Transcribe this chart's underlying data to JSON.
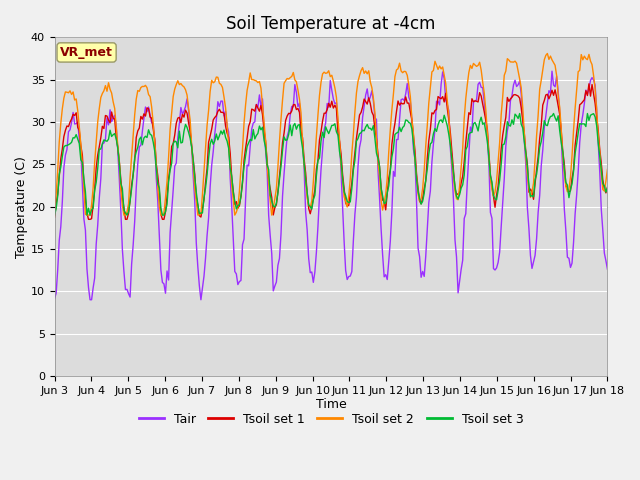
{
  "title": "Soil Temperature at -4cm",
  "xlabel": "Time",
  "ylabel": "Temperature (C)",
  "ylim": [
    0,
    40
  ],
  "yticks": [
    0,
    5,
    10,
    15,
    20,
    25,
    30,
    35,
    40
  ],
  "x_labels": [
    "Jun 3",
    "Jun 4",
    "Jun 5",
    "Jun 6",
    "Jun 7",
    "Jun 8",
    "Jun 9",
    "Jun 10",
    "Jun 11",
    "Jun 12",
    "Jun 13",
    "Jun 14",
    "Jun 15",
    "Jun 16",
    "Jun 17",
    "Jun 18"
  ],
  "annotation_text": "VR_met",
  "annotation_color": "#8B0000",
  "annotation_bg": "#FFFFAA",
  "annotation_edge": "#999966",
  "colors": {
    "Tair": "#9B30FF",
    "Tsoil_set1": "#DD0000",
    "Tsoil_set2": "#FF8800",
    "Tsoil_set3": "#00BB33"
  },
  "legend_labels": [
    "Tair",
    "Tsoil set 1",
    "Tsoil set 2",
    "Tsoil set 3"
  ],
  "plot_bg_color": "#DCDCDC",
  "fig_bg_color": "#F0F0F0",
  "title_fontsize": 12,
  "axis_label_fontsize": 9,
  "tick_fontsize": 8,
  "n_days": 15,
  "seed": 42
}
